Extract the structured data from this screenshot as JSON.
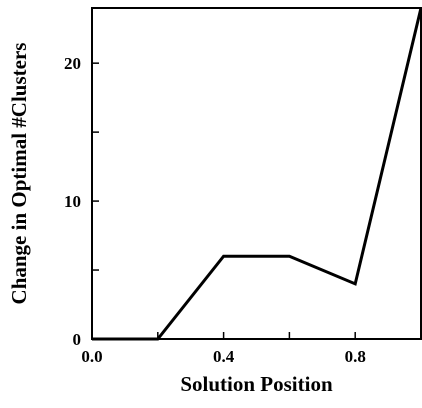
{
  "chart_data": {
    "type": "line",
    "title": "",
    "xlabel": "Solution Position",
    "ylabel": "Change in Optimal #Clusters",
    "xlim": [
      0.0,
      1.0
    ],
    "ylim": [
      0,
      24
    ],
    "x_ticks": [
      0.0,
      0.2,
      0.4,
      0.6,
      0.8,
      1.0
    ],
    "x_tick_labels": [
      "0.0",
      "",
      "0.4",
      "",
      "0.8",
      ""
    ],
    "y_ticks": [
      0,
      5,
      10,
      15,
      20
    ],
    "y_tick_labels": [
      "0",
      "",
      "10",
      "",
      "20"
    ],
    "grid": false,
    "series": [
      {
        "x": [
          0.0,
          0.2,
          0.4,
          0.6,
          0.8,
          1.0
        ],
        "values": [
          0,
          0,
          6,
          6,
          4,
          24
        ]
      }
    ]
  }
}
